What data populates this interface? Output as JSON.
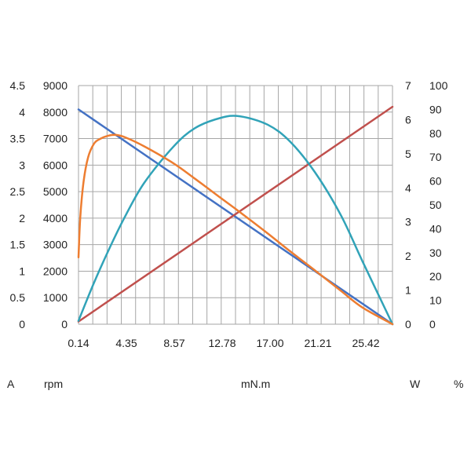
{
  "chart_data": {
    "type": "line",
    "x": [
      0.14,
      1.5,
      3,
      4.35,
      6,
      8.57,
      10.5,
      12.78,
      14.5,
      17.0,
      19,
      21.21,
      23.5,
      25.42,
      28.1
    ],
    "xlim": [
      0.14,
      28.1
    ],
    "x_ticks": [
      "0.14",
      "4.35",
      "8.57",
      "12.78",
      "17.00",
      "21.21",
      "25.42"
    ],
    "xlabel": "mN.m",
    "axes": {
      "current": {
        "unit_label": "A",
        "ticks": [
          "0",
          "0.5",
          "1",
          "1.5",
          "2",
          "2.5",
          "3",
          "3.5",
          "4",
          "4.5"
        ],
        "ylim": [
          0,
          4.5
        ]
      },
      "speed": {
        "unit_label": "rpm",
        "ticks": [
          "0",
          "1000",
          "2000",
          "3000",
          "4000",
          "5000",
          "6000",
          "7000",
          "8000",
          "9000"
        ],
        "ylim": [
          0,
          9000
        ]
      },
      "power": {
        "unit_label": "W",
        "ticks": [
          "0",
          "1",
          "2",
          "3",
          "4",
          "5",
          "6",
          "7"
        ],
        "ylim": [
          0,
          7
        ]
      },
      "efficiency": {
        "unit_label": "%",
        "ticks": [
          "0",
          "10",
          "20",
          "30",
          "40",
          "50",
          "60",
          "70",
          "80",
          "90",
          "100"
        ],
        "ylim": [
          0,
          100
        ]
      }
    },
    "series": [
      {
        "axis": "speed",
        "color": "#4472c4",
        "points": [
          [
            0.14,
            8100
          ],
          [
            28.1,
            0
          ]
        ]
      },
      {
        "axis": "current",
        "color": "#c0504d",
        "points": [
          [
            0.14,
            0.05
          ],
          [
            28.1,
            4.1
          ]
        ]
      },
      {
        "axis": "power",
        "color": "#31a3b8",
        "points": [
          [
            0.14,
            0.1
          ],
          [
            1.5,
            1.2
          ],
          [
            3,
            2.3
          ],
          [
            4.35,
            3.2
          ],
          [
            6,
            4.15
          ],
          [
            8.57,
            5.2
          ],
          [
            10.5,
            5.75
          ],
          [
            12.78,
            6.05
          ],
          [
            14.5,
            6.1
          ],
          [
            17.0,
            5.85
          ],
          [
            19,
            5.35
          ],
          [
            21.21,
            4.45
          ],
          [
            23.5,
            3.2
          ],
          [
            25.42,
            1.85
          ],
          [
            28.1,
            0
          ]
        ]
      },
      {
        "axis": "efficiency",
        "color": "#ed7d31",
        "points": [
          [
            0.14,
            28
          ],
          [
            0.3,
            45
          ],
          [
            0.6,
            60
          ],
          [
            1.0,
            70
          ],
          [
            1.5,
            75.5
          ],
          [
            2.0,
            77.5
          ],
          [
            2.8,
            79
          ],
          [
            3.5,
            79.3
          ],
          [
            4.35,
            78.2
          ],
          [
            6,
            74.5
          ],
          [
            8.57,
            67.5
          ],
          [
            10.5,
            61
          ],
          [
            12.78,
            53
          ],
          [
            14.5,
            47
          ],
          [
            17.0,
            38
          ],
          [
            19,
            30.5
          ],
          [
            21.21,
            22.5
          ],
          [
            23.5,
            14
          ],
          [
            25.42,
            7
          ],
          [
            28.1,
            0
          ]
        ]
      }
    ],
    "grid": true,
    "legend": "none"
  }
}
